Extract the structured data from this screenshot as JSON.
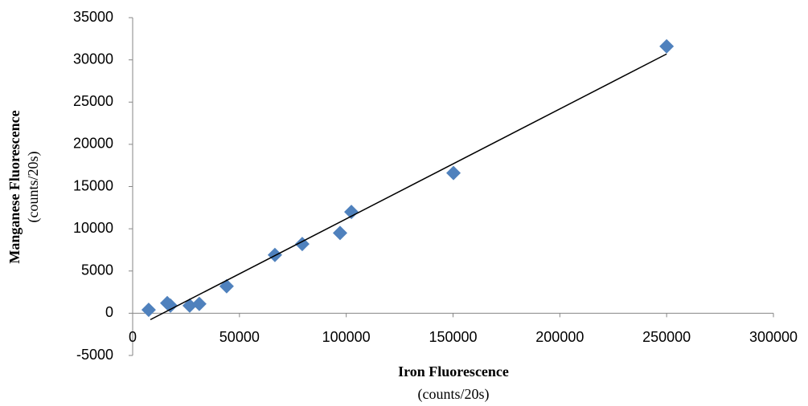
{
  "chart_data": {
    "type": "scatter",
    "xlabel": "Iron Fluorescence",
    "xlabel_units": "(counts/20s)",
    "ylabel": "Manganese Fluorescence",
    "ylabel_units": "(counts/20s)",
    "series": [
      {
        "color": "#4f81bd",
        "x": [
          7500,
          16200,
          17700,
          26700,
          31200,
          44000,
          66600,
          79400,
          97100,
          102400,
          150200,
          250000
        ],
        "values": [
          400,
          1200,
          900,
          900,
          1100,
          3200,
          6900,
          8200,
          9500,
          12000,
          16600,
          31600
        ]
      }
    ],
    "trendline": {
      "color": "#000000",
      "x": [
        8300,
        250000
      ],
      "values": [
        -760,
        30700
      ]
    },
    "xlim": [
      0,
      300000
    ],
    "xticks": [
      0,
      50000,
      100000,
      150000,
      200000,
      250000,
      300000
    ],
    "ylim": [
      -5000,
      35000
    ],
    "yticks": [
      -5000,
      0,
      5000,
      10000,
      15000,
      20000,
      25000,
      30000,
      35000
    ]
  }
}
